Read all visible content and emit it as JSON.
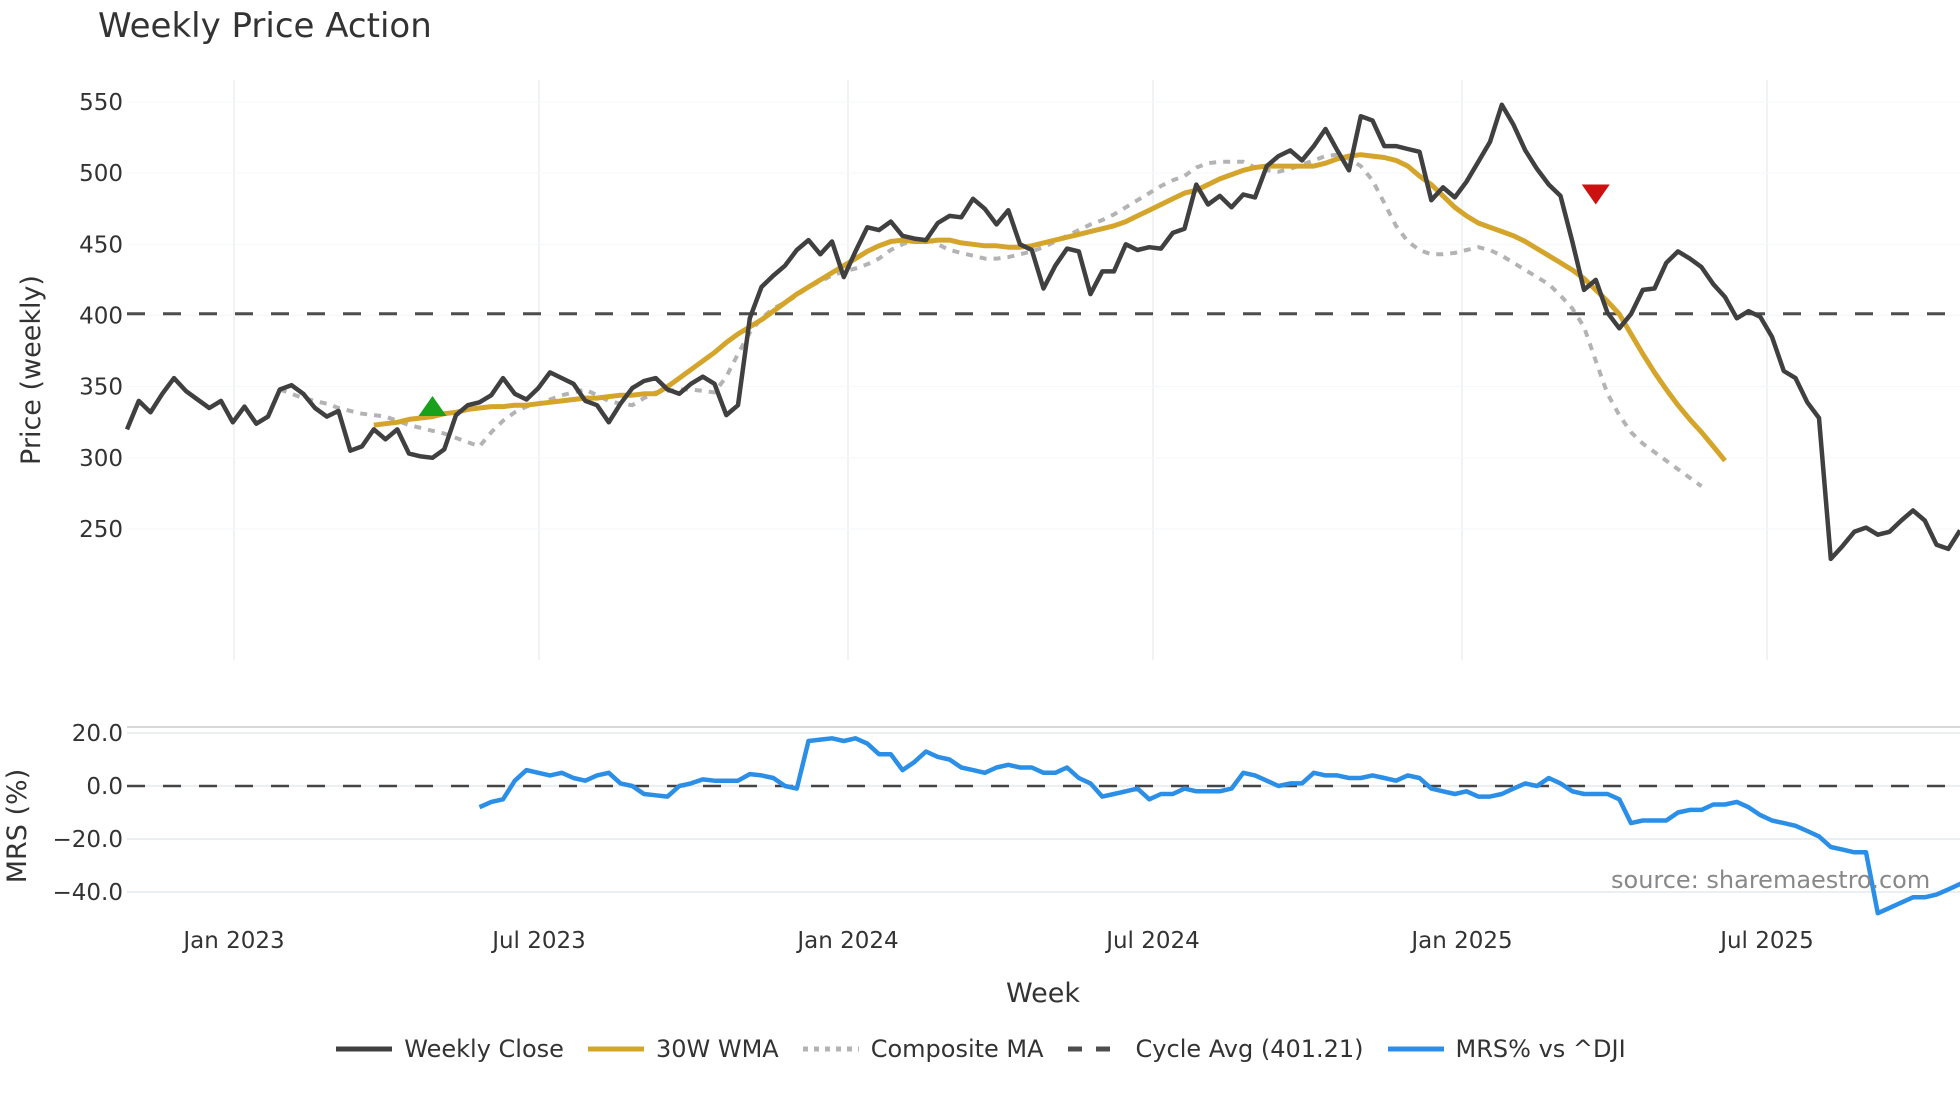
{
  "title": "Weekly Price Action",
  "source_note": "source: sharemaestro.com",
  "colors": {
    "weekly_close": "#404040",
    "wma": "#d4a52a",
    "composite_ma": "#b3b3b3",
    "cycle_avg": "#4d4d4d",
    "mrs": "#2b8fe8",
    "buy_marker": "#1aa01a",
    "sell_marker": "#cc1111",
    "grid": "#eceff2"
  },
  "legend": [
    {
      "label": "Weekly Close",
      "style": "solid",
      "color": "#404040"
    },
    {
      "label": "30W WMA",
      "style": "solid",
      "color": "#d4a52a"
    },
    {
      "label": "Composite MA",
      "style": "dotted",
      "color": "#b3b3b3"
    },
    {
      "label": "Cycle Avg (401.21)",
      "style": "dashed",
      "color": "#4d4d4d"
    },
    {
      "label": "MRS% vs ^DJI",
      "style": "solid",
      "color": "#2b8fe8"
    }
  ],
  "chart_data": [
    {
      "type": "line",
      "title": "Weekly Price Action",
      "xlabel": "Week",
      "ylabel": "Price (weekly)",
      "ylim": [
        213,
        576
      ],
      "yticks": [
        250,
        300,
        350,
        400,
        450,
        500,
        550
      ],
      "xticks": [
        "Jan 2023",
        "Jul 2023",
        "Jan 2024",
        "Jul 2024",
        "Jan 2025",
        "Jul 2025"
      ],
      "grid": true,
      "legend_position": "bottom",
      "reference_line": {
        "name": "Cycle Avg (401.21)",
        "value": 401.21
      },
      "markers": [
        {
          "type": "buy",
          "shape": "triangle-up",
          "x_index": 26,
          "value": 335
        },
        {
          "type": "sell",
          "shape": "triangle-down",
          "x_index": 125,
          "value": 485
        }
      ],
      "series": [
        {
          "name": "Weekly Close",
          "start_index": 0,
          "values": [
            320,
            340,
            332,
            345,
            356,
            347,
            341,
            335,
            340,
            325,
            336,
            324,
            329,
            348,
            351,
            345,
            335,
            329,
            333,
            305,
            308,
            320,
            313,
            320,
            303,
            301,
            300,
            306,
            330,
            337,
            339,
            344,
            356,
            345,
            341,
            349,
            360,
            356,
            352,
            340,
            337,
            325,
            338,
            349,
            354,
            356,
            348,
            345,
            352,
            357,
            352,
            330,
            337,
            398,
            420,
            428,
            435,
            446,
            453,
            443,
            452,
            427,
            445,
            462,
            460,
            466,
            456,
            454,
            453,
            465,
            470,
            469,
            482,
            475,
            464,
            474,
            450,
            446,
            419,
            435,
            447,
            445,
            415,
            431,
            431,
            450,
            446,
            448,
            447,
            458,
            461,
            492,
            478,
            484,
            476,
            485,
            483,
            505,
            512,
            516,
            509,
            519,
            531,
            516,
            502,
            540,
            537,
            519,
            519,
            517,
            515,
            481,
            490,
            483,
            494,
            508,
            522,
            548,
            534,
            516,
            503,
            492,
            484,
            452,
            418,
            425,
            402,
            391,
            401,
            418,
            419,
            437,
            445,
            440,
            434,
            422,
            413,
            398,
            403,
            399,
            385,
            361,
            356,
            339,
            328,
            229,
            238,
            248,
            251,
            246,
            248,
            256,
            263,
            256,
            239,
            236,
            249
          ]
        },
        {
          "name": "30W WMA",
          "start_index": 21,
          "values": [
            323,
            324,
            325,
            327,
            328,
            329,
            331,
            332,
            334,
            335,
            336,
            336,
            337,
            337,
            338,
            339,
            340,
            341,
            342,
            342,
            343,
            344,
            344,
            345,
            345,
            350,
            356,
            362,
            368,
            374,
            381,
            387,
            392,
            397,
            403,
            409,
            415,
            420,
            425,
            430,
            435,
            440,
            445,
            449,
            452,
            453,
            452,
            452,
            453,
            453,
            451,
            450,
            449,
            449,
            448,
            448,
            449,
            451,
            453,
            455,
            457,
            459,
            461,
            463,
            466,
            470,
            474,
            478,
            482,
            486,
            488,
            492,
            496,
            499,
            502,
            504,
            505,
            505,
            505,
            505,
            505,
            507,
            510,
            512,
            513,
            512,
            511,
            509,
            505,
            498,
            492,
            484,
            476,
            470,
            465,
            462,
            459,
            456,
            452,
            447,
            442,
            437,
            432,
            426,
            418,
            410,
            401,
            387,
            373,
            360,
            348,
            337,
            327,
            318,
            308,
            298
          ]
        },
        {
          "name": "Composite MA",
          "start_index": 13,
          "values": [
            348,
            345,
            342,
            340,
            338,
            335,
            333,
            331,
            330,
            329,
            326,
            323,
            321,
            319,
            317,
            314,
            311,
            308,
            318,
            326,
            332,
            336,
            338,
            341,
            344,
            346,
            348,
            344,
            340,
            338,
            337,
            342,
            346,
            347,
            348,
            348,
            347,
            346,
            357,
            373,
            388,
            398,
            405,
            409,
            414,
            420,
            424,
            428,
            431,
            433,
            436,
            440,
            446,
            450,
            453,
            454,
            450,
            446,
            444,
            442,
            440,
            440,
            441,
            443,
            445,
            448,
            452,
            456,
            460,
            464,
            467,
            471,
            476,
            481,
            486,
            491,
            495,
            498,
            504,
            507,
            508,
            508,
            508,
            504,
            502,
            501,
            503,
            506,
            509,
            512,
            513,
            510,
            505,
            495,
            479,
            463,
            452,
            446,
            443,
            443,
            444,
            446,
            448,
            446,
            442,
            437,
            432,
            427,
            422,
            414,
            405,
            392,
            368,
            345,
            330,
            318,
            310,
            304,
            298,
            292,
            286,
            280
          ]
        },
        {
          "name": "Cycle Avg (401.21)",
          "values": [
            401.21
          ]
        }
      ]
    },
    {
      "type": "line",
      "title": "",
      "xlabel": "Week",
      "ylabel": "MRS (%)",
      "ylim": [
        -50,
        25
      ],
      "yticks": [
        -40.0,
        -20.0,
        0.0,
        20.0
      ],
      "reference_line": {
        "value": 0.0,
        "style": "dashed"
      },
      "series": [
        {
          "name": "MRS% vs ^DJI",
          "start_index": 30,
          "values": [
            -8,
            -6,
            -5,
            2,
            6,
            5,
            4,
            5,
            3,
            2,
            4,
            5,
            1,
            0,
            -3,
            -3.5,
            -4,
            0,
            1,
            2.5,
            2,
            2,
            2,
            4.5,
            4,
            3,
            0,
            -1,
            17,
            17.5,
            18,
            17,
            18,
            16,
            12,
            12,
            6,
            9,
            13,
            11,
            10,
            7,
            6,
            5,
            7,
            8,
            7,
            7,
            5,
            5,
            7,
            3,
            1,
            -4,
            -3,
            -2,
            -1,
            -5,
            -3,
            -3,
            -1,
            -2,
            -2,
            -2,
            -1,
            5,
            4,
            2,
            0,
            1,
            1,
            5,
            4,
            4,
            3,
            3,
            4,
            3,
            2,
            4,
            3,
            -1,
            -2,
            -3,
            -2,
            -4,
            -4,
            -3,
            -1,
            1,
            0,
            3,
            1,
            -2,
            -3,
            -3,
            -3,
            -5,
            -14,
            -13,
            -13,
            -13,
            -10,
            -9,
            -9,
            -7,
            -7,
            -6,
            -8,
            -11,
            -13,
            -14,
            -15,
            -17,
            -19,
            -23,
            -24,
            -25,
            -25,
            -48,
            -46,
            -44,
            -42,
            -42,
            -41,
            -39,
            -37,
            -38,
            -37,
            -35
          ]
        }
      ]
    }
  ]
}
